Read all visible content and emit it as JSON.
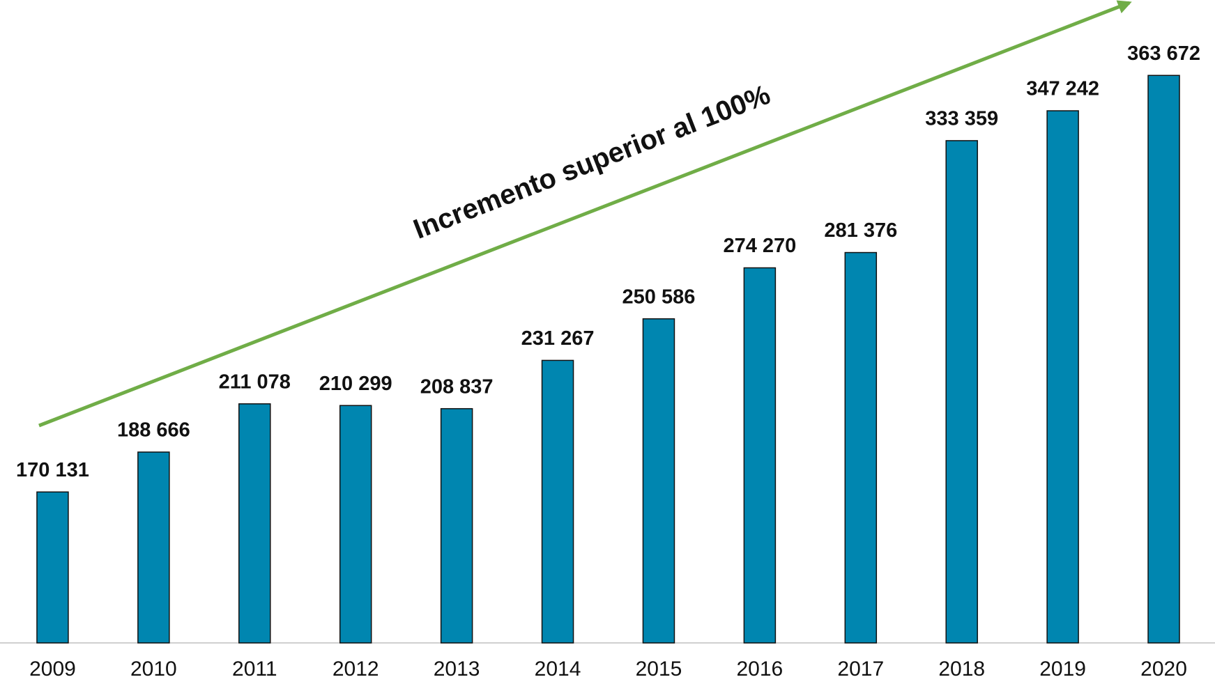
{
  "chart_data": {
    "type": "bar",
    "annotation": "Incremento superior al 100%",
    "annotation_color": "#70ad47",
    "categories": [
      "2009",
      "2010",
      "2011",
      "2012",
      "2013",
      "2014",
      "2015",
      "2016",
      "2017",
      "2018",
      "2019",
      "2020"
    ],
    "values": [
      170131,
      188666,
      211078,
      210299,
      208837,
      231267,
      250586,
      274270,
      281376,
      333359,
      347242,
      363672
    ],
    "value_labels": [
      "170 131",
      "188 666",
      "211 078",
      "210 299",
      "208 837",
      "231 267",
      "250 586",
      "274 270",
      "281 376",
      "333 359",
      "347 242",
      "363 672"
    ],
    "color": "#0086b0",
    "ylim": [
      100000,
      400000
    ]
  }
}
